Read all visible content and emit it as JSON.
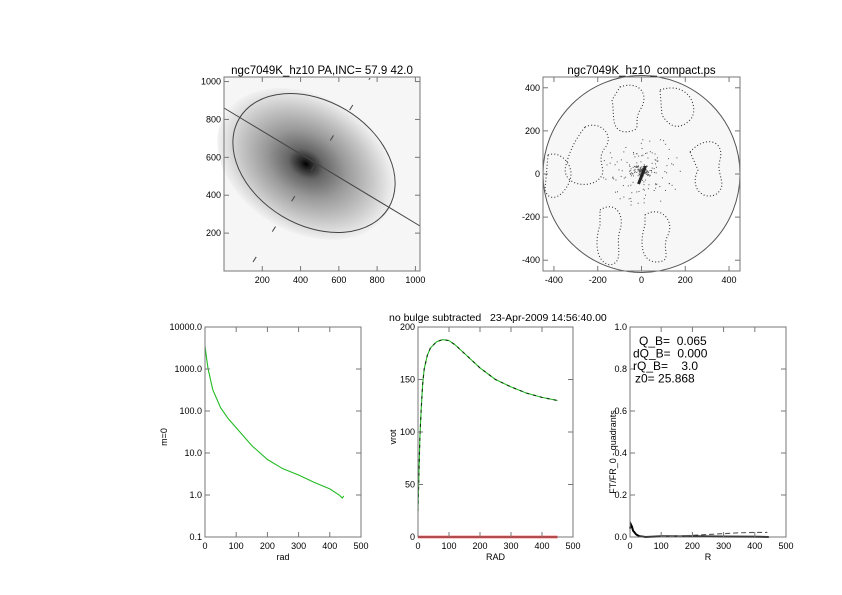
{
  "figure_title": "no bulge subtracted   23-Apr-2009 14:56:40.00",
  "chart_data": [
    {
      "type": "image",
      "title": "ngc7049K_hz10 PA,INC= 57.9 42.0",
      "xlim": [
        0,
        1024
      ],
      "ylim": [
        0,
        1024
      ],
      "xticks": [
        "200",
        "400",
        "600",
        "800",
        "1000"
      ],
      "yticks": [
        "200",
        "400",
        "600",
        "800",
        "1000"
      ],
      "xtick_values": [
        200,
        400,
        600,
        800,
        1000
      ],
      "ytick_values": [
        200,
        400,
        600,
        800,
        1000
      ],
      "galaxy_center": [
        470,
        565
      ],
      "position_angle_deg": 57.9,
      "inclination_deg": 42.0
    },
    {
      "type": "image",
      "title": "ngc7049K_hz10_compact.ps",
      "xlim": [
        -450,
        450
      ],
      "ylim": [
        -450,
        450
      ],
      "xticks": [
        "-400",
        "-200",
        "0",
        "200",
        "400"
      ],
      "yticks": [
        "-400",
        "-200",
        "0",
        "200",
        "400"
      ],
      "xtick_values": [
        -400,
        -200,
        0,
        200,
        400
      ],
      "ytick_values": [
        -400,
        -200,
        0,
        200,
        400
      ],
      "circle_radius": 450
    },
    {
      "type": "line",
      "xlabel": "rad",
      "ylabel": "m=0",
      "xlim": [
        0,
        500
      ],
      "ylim": [
        0.1,
        10000
      ],
      "yscale": "log",
      "xticks": [
        "0",
        "100",
        "200",
        "300",
        "400",
        "500"
      ],
      "xtick_values": [
        0,
        100,
        200,
        300,
        400,
        500
      ],
      "yticks": [
        "0.1",
        "1.0",
        "10.0",
        "100.0",
        "1000.0",
        "10000.0"
      ],
      "ytick_values": [
        0.1,
        1,
        10,
        100,
        1000,
        10000
      ],
      "series": [
        {
          "name": "m=0",
          "color": "#22bb22",
          "x": [
            0,
            5,
            10,
            25,
            50,
            75,
            100,
            150,
            200,
            250,
            300,
            350,
            400,
            430,
            440,
            445
          ],
          "y": [
            3500,
            1800,
            1000,
            320,
            120,
            65,
            40,
            15,
            7,
            4.2,
            3,
            2,
            1.4,
            1.0,
            0.85,
            0.95
          ]
        }
      ]
    },
    {
      "type": "line",
      "xlabel": "RAD",
      "ylabel": "vrot",
      "xlim": [
        0,
        500
      ],
      "ylim": [
        0,
        200
      ],
      "xticks": [
        "0",
        "100",
        "200",
        "300",
        "400",
        "500"
      ],
      "xtick_values": [
        0,
        100,
        200,
        300,
        400,
        500
      ],
      "yticks": [
        "0",
        "50",
        "100",
        "150",
        "200"
      ],
      "ytick_values": [
        0,
        50,
        100,
        150,
        200
      ],
      "series": [
        {
          "name": "vrot",
          "color": "#22bb22",
          "x": [
            0,
            3,
            6,
            10,
            15,
            20,
            30,
            40,
            60,
            80,
            100,
            120,
            160,
            200,
            250,
            300,
            350,
            400,
            450
          ],
          "y": [
            25,
            60,
            95,
            120,
            145,
            160,
            173,
            180,
            186,
            188,
            187,
            183,
            172,
            161,
            150,
            143,
            137,
            133,
            130
          ]
        },
        {
          "name": "bulge",
          "color": "#ee2222",
          "x": [
            0,
            450
          ],
          "y": [
            0,
            0
          ]
        }
      ]
    },
    {
      "type": "line",
      "xlabel": "R",
      "ylabel": "FT/FR_0 - quadrants",
      "xlim": [
        0,
        500
      ],
      "ylim": [
        0,
        1
      ],
      "xticks": [
        "0",
        "100",
        "200",
        "300",
        "400",
        "500"
      ],
      "xtick_values": [
        0,
        100,
        200,
        300,
        400,
        500
      ],
      "yticks": [
        "0.0",
        "0.2",
        "0.4",
        "0.6",
        "0.8",
        "1.0"
      ],
      "ytick_values": [
        0,
        0.2,
        0.4,
        0.6,
        0.8,
        1.0
      ],
      "annotations": [
        "Q_B=  0.065",
        "dQ_B=  0.000",
        "rQ_B=    3.0",
        "z0= 25.868"
      ],
      "series": [
        {
          "name": "FT/FR_0",
          "color": "#000000",
          "x": [
            0,
            3,
            6,
            10,
            20,
            30,
            50,
            100,
            200,
            300,
            400,
            445
          ],
          "y": [
            0.04,
            0.06,
            0.05,
            0.03,
            0.012,
            0.004,
            0.0,
            0.003,
            0.003,
            0.002,
            0.001,
            0.0
          ]
        },
        {
          "name": "quadrants",
          "color": "#555555",
          "dashed": true,
          "x": [
            100,
            150,
            200,
            250,
            300,
            350,
            400,
            440
          ],
          "y": [
            0.002,
            0.004,
            0.008,
            0.012,
            0.016,
            0.02,
            0.022,
            0.022
          ]
        }
      ]
    }
  ]
}
